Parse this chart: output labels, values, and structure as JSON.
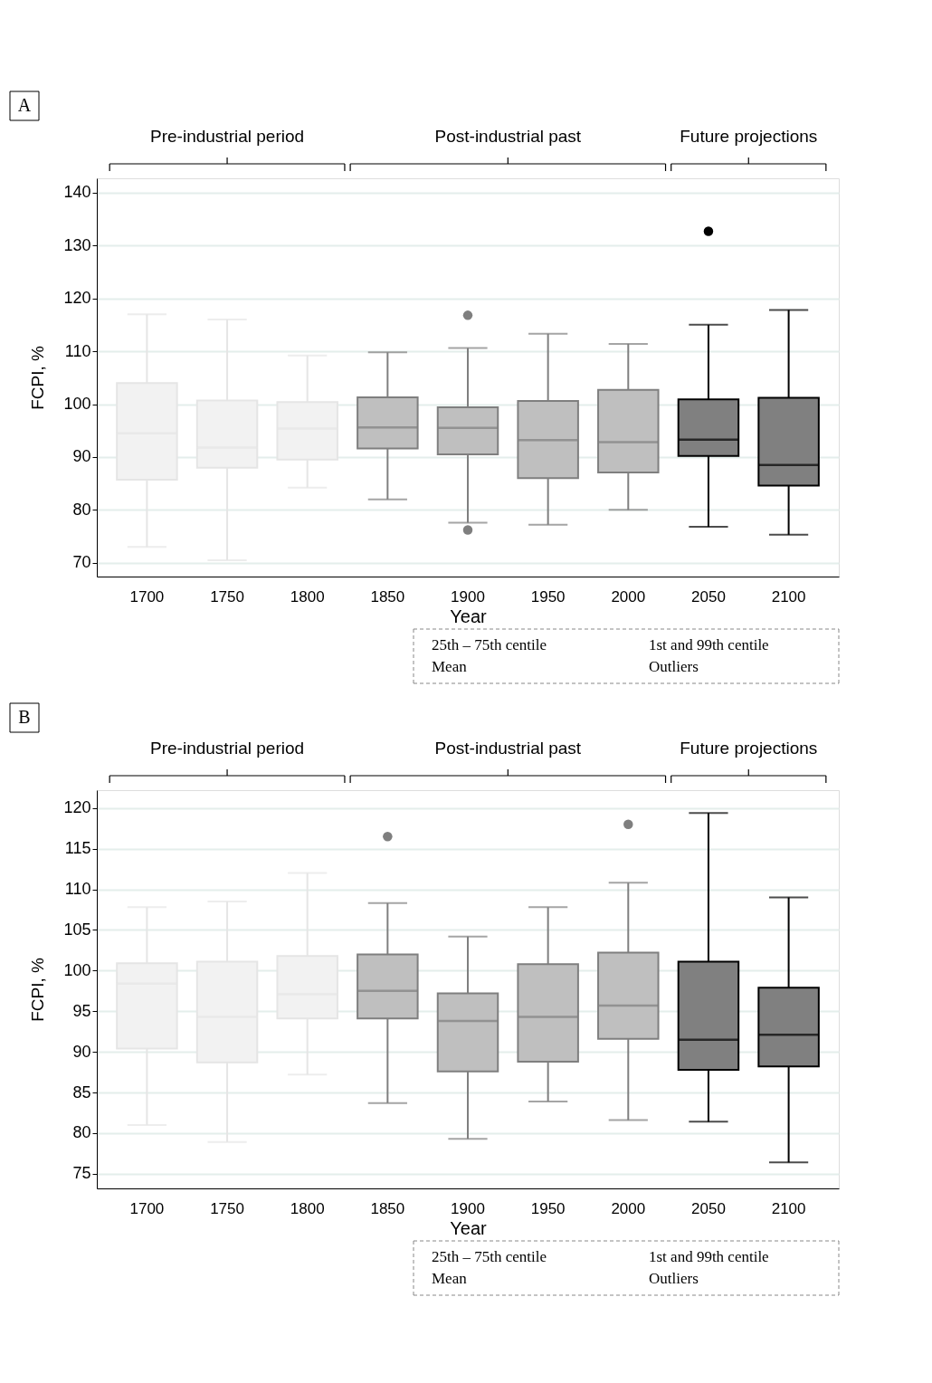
{
  "chart_data": [
    {
      "type": "box",
      "title": "A",
      "xlabel": "Year",
      "ylabel": "FCPI, %",
      "categories": [
        "1700",
        "1750",
        "1800",
        "1850",
        "1900",
        "1950",
        "2000",
        "2050",
        "2100"
      ],
      "ylim": [
        67.4,
        142.7
      ],
      "yticks": [
        70,
        80,
        90,
        100,
        110,
        120,
        130,
        140
      ],
      "grid": "y",
      "annotations": [
        "Pre-industrial period",
        "Post-industrial past",
        "Future projections",
        "25th – 75th centile",
        "1st and 99th centile",
        "Mean",
        "Outliers"
      ],
      "colors": [
        "#f2f2f2",
        "#f2f2f2",
        "#f2f2f2",
        "#bfbfbf",
        "#bfbfbf",
        "#bfbfbf",
        "#bfbfbf",
        "#808080",
        "#808080"
      ],
      "boxes": [
        {
          "low": 73,
          "q1": 85.7,
          "median": 94.5,
          "q3": 104,
          "high": 117
        },
        {
          "low": 70.5,
          "q1": 88,
          "median": 91.8,
          "q3": 100.7,
          "high": 116
        },
        {
          "low": 84.2,
          "q1": 89.5,
          "median": 95.4,
          "q3": 100.4,
          "high": 109.2
        },
        {
          "low": 82,
          "q1": 91.6,
          "median": 95.6,
          "q3": 101.3,
          "high": 109.8
        },
        {
          "low": 77.6,
          "q1": 90.5,
          "median": 95.5,
          "q3": 99.4,
          "high": 110.6,
          "outliers": [
            116.8,
            76.2
          ]
        },
        {
          "low": 77.2,
          "q1": 86,
          "median": 93.2,
          "q3": 100.6,
          "high": 113.3
        },
        {
          "low": 80,
          "q1": 87.1,
          "median": 92.8,
          "q3": 102.7,
          "high": 111.4
        },
        {
          "low": 76.8,
          "q1": 90.2,
          "median": 93.3,
          "q3": 100.9,
          "high": 115,
          "outliers": [
            132.7
          ]
        },
        {
          "low": 75.3,
          "q1": 84.6,
          "median": 88.5,
          "q3": 101.2,
          "high": 117.8
        }
      ]
    },
    {
      "type": "box",
      "title": "B",
      "xlabel": "Year",
      "ylabel": "FCPI, %",
      "categories": [
        "1700",
        "1750",
        "1800",
        "1850",
        "1900",
        "1950",
        "2000",
        "2050",
        "2100"
      ],
      "ylim": [
        73.2,
        122.2
      ],
      "yticks": [
        75,
        80,
        85,
        90,
        95,
        100,
        105,
        110,
        115,
        120
      ],
      "grid": "y",
      "annotations": [
        "Pre-industrial period",
        "Post-industrial past",
        "Future projections",
        "25th – 75th centile",
        "1st and 99th centile",
        "Mean",
        "Outliers"
      ],
      "colors": [
        "#f2f2f2",
        "#f2f2f2",
        "#f2f2f2",
        "#bfbfbf",
        "#bfbfbf",
        "#bfbfbf",
        "#bfbfbf",
        "#808080",
        "#808080"
      ],
      "boxes": [
        {
          "low": 81,
          "q1": 90.4,
          "median": 98.4,
          "q3": 100.9,
          "high": 107.8
        },
        {
          "low": 78.9,
          "q1": 88.7,
          "median": 94.3,
          "q3": 101.1,
          "high": 108.5
        },
        {
          "low": 87.2,
          "q1": 94.1,
          "median": 97.1,
          "q3": 101.8,
          "high": 112
        },
        {
          "low": 83.7,
          "q1": 94.1,
          "median": 97.5,
          "q3": 102,
          "high": 108.3,
          "outliers": [
            116.5
          ]
        },
        {
          "low": 79.3,
          "q1": 87.6,
          "median": 93.8,
          "q3": 97.2,
          "high": 104.2
        },
        {
          "low": 83.9,
          "q1": 88.8,
          "median": 94.3,
          "q3": 100.8,
          "high": 107.8
        },
        {
          "low": 81.6,
          "q1": 91.6,
          "median": 95.7,
          "q3": 102.2,
          "high": 110.8,
          "outliers": [
            118
          ]
        },
        {
          "low": 81.4,
          "q1": 87.8,
          "median": 91.5,
          "q3": 101.1,
          "high": 119.4
        },
        {
          "low": 76.4,
          "q1": 88.2,
          "median": 92.1,
          "q3": 97.9,
          "high": 109
        }
      ]
    }
  ]
}
